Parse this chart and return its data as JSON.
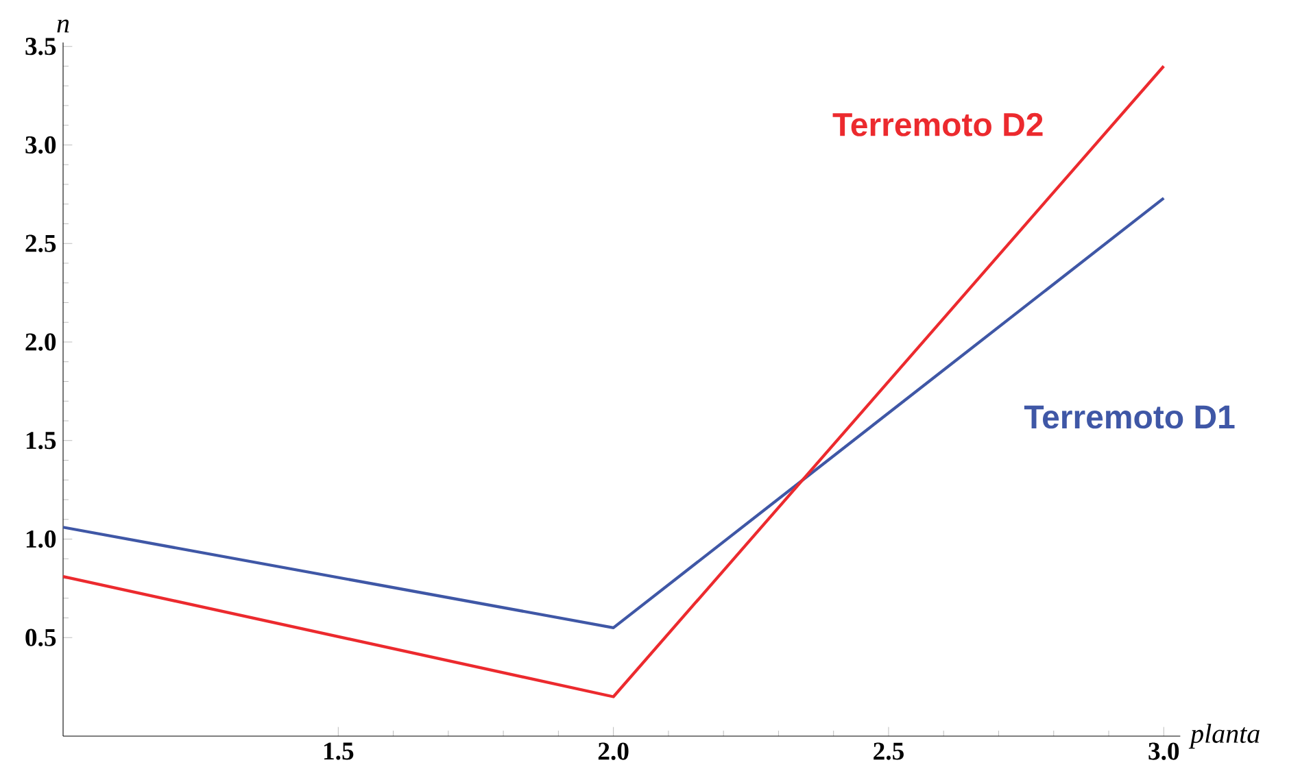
{
  "chart_data": {
    "type": "line",
    "xlabel": "planta",
    "ylabel": "n",
    "x": [
      1,
      2,
      3
    ],
    "series": [
      {
        "name": "Terremoto D1",
        "color": "#3f57a6",
        "values": [
          1.06,
          0.55,
          2.73
        ]
      },
      {
        "name": "Terremoto D2",
        "color": "#ec2a2e",
        "values": [
          0.81,
          0.2,
          3.4
        ]
      }
    ],
    "xlim": [
      1,
      3.03
    ],
    "ylim": [
      0,
      3.52
    ],
    "xticks": [
      1.5,
      {
        "value": 2,
        "label": "2.0"
      },
      2.5,
      {
        "value": 3,
        "label": "3.0"
      }
    ],
    "yticks": [
      0.5,
      {
        "value": 1,
        "label": "1.0"
      },
      1.5,
      {
        "value": 2,
        "label": "2.0"
      },
      2.5,
      {
        "value": 3,
        "label": "3.0"
      },
      3.5
    ],
    "grid": false,
    "marker": "none",
    "line_style": "solid"
  }
}
